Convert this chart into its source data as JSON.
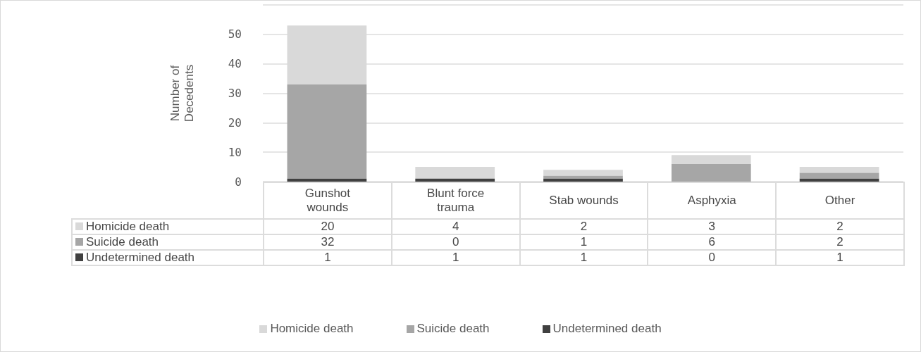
{
  "chart_data": {
    "type": "bar",
    "stacked": true,
    "ylabel": "Number of Decedents",
    "categories": [
      "Gunshot wounds",
      "Blunt force trauma",
      "Stab wounds",
      "Asphyxia",
      "Other"
    ],
    "series": [
      {
        "name": "Undetermined death",
        "color": "#404040",
        "values": [
          1,
          1,
          1,
          0,
          1
        ]
      },
      {
        "name": "Suicide death",
        "color": "#a6a6a6",
        "values": [
          32,
          0,
          1,
          6,
          2
        ]
      },
      {
        "name": "Homicide death",
        "color": "#d9d9d9",
        "values": [
          20,
          4,
          2,
          3,
          2
        ]
      }
    ],
    "ylim": [
      0,
      60
    ],
    "yticks": [
      0,
      10,
      20,
      30,
      40,
      50,
      {
        "value": 60,
        "label": null
      }
    ],
    "grid": "y",
    "legend": "bottom",
    "data_labels": true
  }
}
